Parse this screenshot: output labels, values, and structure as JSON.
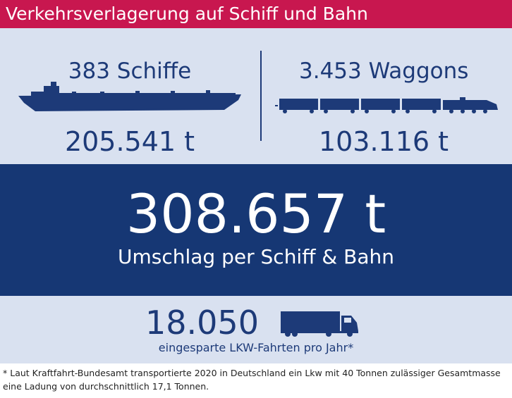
{
  "header": {
    "title": "Verkehrsverlagerung auf Schiff und Bahn"
  },
  "ships": {
    "label": "383 Schiffe",
    "tonnage": "205.541 t",
    "icon": "ship-icon"
  },
  "trains": {
    "label": "3.453 Waggons",
    "tonnage": "103.116 t",
    "icon": "train-icon"
  },
  "total": {
    "value": "308.657 t",
    "caption": "Umschlag per Schiff & Bahn"
  },
  "lkw": {
    "value": "18.050",
    "caption": "eingesparte LKW-Fahrten pro Jahr*",
    "icon": "truck-icon"
  },
  "footnote": "* Laut Kraftfahrt-Bundesamt transportierte 2020 in Deutschland ein Lkw mit 40 Tonnen zulässiger Gesamtmasse eine Ladung von durchschnittlich 17,1 Tonnen.",
  "colors": {
    "accent": "#c8174f",
    "navy": "#163774",
    "panel": "#d9e1f0"
  }
}
